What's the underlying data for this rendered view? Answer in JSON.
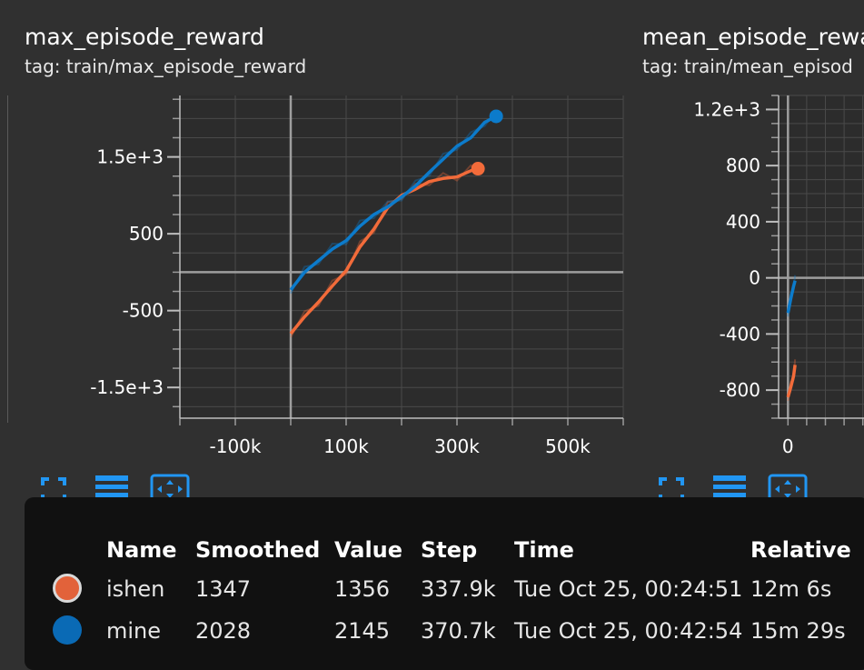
{
  "cards": [
    {
      "title": "max_episode_reward",
      "tag": "tag: train/max_episode_reward",
      "y_ticks": [
        "1.5e+3",
        "500",
        "-500",
        "-1.5e+3"
      ],
      "x_ticks": [
        "-100k",
        "100k",
        "300k",
        "500k"
      ]
    },
    {
      "title": "mean_episode_rewa",
      "tag": "tag: train/mean_episod",
      "y_ticks": [
        "1.2e+3",
        "800",
        "400",
        "0",
        "-400",
        "-800"
      ],
      "x_ticks": [
        "0"
      ]
    }
  ],
  "toolbar_icons": [
    "fullscreen-icon",
    "data-table-icon",
    "fit-domain-icon"
  ],
  "tooltip": {
    "headers": [
      "Name",
      "Smoothed",
      "Value",
      "Step",
      "Time",
      "Relative"
    ],
    "rows": [
      {
        "name": "ishen",
        "smoothed": "1347",
        "value": "1356",
        "step": "337.9k",
        "time": "Tue Oct 25, 00:24:51",
        "relative": "12m 6s",
        "color": "#e2623a"
      },
      {
        "name": "mine",
        "smoothed": "2028",
        "value": "2145",
        "step": "370.7k",
        "time": "Tue Oct 25, 00:42:54",
        "relative": "15m 29s",
        "color": "#0a6ab5"
      }
    ]
  },
  "colors": {
    "ishen": "#f26b3a",
    "mine": "#0c7bcb",
    "accent": "#2196f3"
  },
  "chart_data": [
    {
      "type": "line",
      "title": "max_episode_reward",
      "xlabel": "",
      "ylabel": "",
      "xlim": [
        -200000,
        600000
      ],
      "ylim": [
        -1900,
        2300
      ],
      "grid": true,
      "series": [
        {
          "name": "ishen",
          "x": [
            0,
            25000,
            50000,
            75000,
            100000,
            125000,
            150000,
            175000,
            200000,
            225000,
            250000,
            275000,
            300000,
            325000,
            337900
          ],
          "y": [
            -800,
            -580,
            -390,
            -180,
            20,
            330,
            560,
            840,
            1000,
            1080,
            1180,
            1220,
            1240,
            1320,
            1347
          ]
        },
        {
          "name": "mine",
          "x": [
            0,
            25000,
            50000,
            75000,
            100000,
            125000,
            150000,
            175000,
            200000,
            225000,
            250000,
            275000,
            300000,
            325000,
            350000,
            370700
          ],
          "y": [
            -230,
            0,
            150,
            300,
            410,
            600,
            750,
            850,
            980,
            1120,
            1300,
            1470,
            1640,
            1750,
            1950,
            2028
          ]
        }
      ],
      "x_ticks": [
        -100000,
        100000,
        300000,
        500000
      ],
      "y_ticks": [
        1500,
        500,
        -500,
        -1500
      ]
    },
    {
      "type": "line",
      "title": "mean_episode_rewa",
      "xlabel": "",
      "ylabel": "",
      "xlim": [
        -50000,
        450000
      ],
      "ylim": [
        -1000,
        1300
      ],
      "grid": true,
      "series": [
        {
          "name": "ishen",
          "x": [
            0,
            15000,
            30000,
            38000
          ],
          "y": [
            -850,
            -780,
            -700,
            -620
          ]
        },
        {
          "name": "mine",
          "x": [
            0,
            15000,
            30000,
            38000
          ],
          "y": [
            -250,
            -150,
            -60,
            -20
          ]
        }
      ],
      "x_ticks": [
        0
      ],
      "y_ticks": [
        1200,
        800,
        400,
        0,
        -400,
        -800
      ]
    }
  ]
}
